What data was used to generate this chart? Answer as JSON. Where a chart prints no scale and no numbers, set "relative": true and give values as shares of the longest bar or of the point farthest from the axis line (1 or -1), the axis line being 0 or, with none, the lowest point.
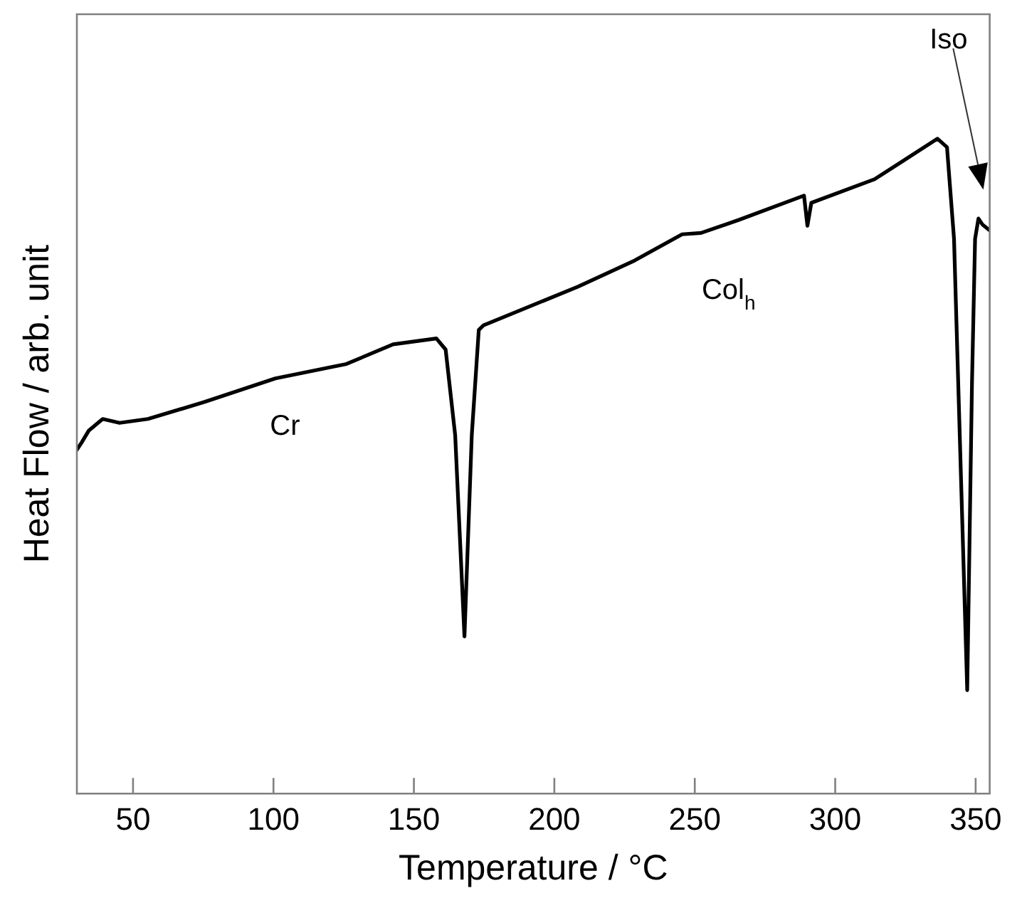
{
  "chart_data": {
    "type": "line",
    "relative": true,
    "xlabel": "Temperature / °C",
    "ylabel": "Heat Flow / arb. unit",
    "xlim": [
      30,
      355
    ],
    "xticks": [
      50,
      100,
      150,
      200,
      250,
      300,
      350
    ],
    "grid": false,
    "legend": false,
    "marker": "none",
    "line_style": "solid",
    "x": [
      30,
      31.7,
      34.2,
      39.2,
      45.2,
      55.3,
      75.5,
      100.7,
      126,
      142.6,
      158,
      161.3,
      164.7,
      168,
      170.6,
      173.1,
      174.8,
      208.4,
      228.6,
      245.5,
      252.2,
      265.7,
      288.9,
      290.1,
      291.5,
      314,
      336.4,
      339.8,
      342.3,
      344.8,
      347,
      348.7,
      349.8,
      351,
      352.4,
      355
    ],
    "series": [
      {
        "color": "#000000",
        "values": [
          0.525,
          0.536,
          0.554,
          0.572,
          0.566,
          0.572,
          0.598,
          0.634,
          0.656,
          0.686,
          0.695,
          0.678,
          0.547,
          0.24,
          0.547,
          0.708,
          0.715,
          0.774,
          0.814,
          0.854,
          0.856,
          0.876,
          0.913,
          0.867,
          0.902,
          0.938,
          1.0,
          0.987,
          0.847,
          0.48,
          0.158,
          0.627,
          0.847,
          0.878,
          0.869,
          0.86
        ]
      }
    ],
    "annotations": [
      "Cr",
      "Col$_{h}$",
      "Iso"
    ]
  }
}
